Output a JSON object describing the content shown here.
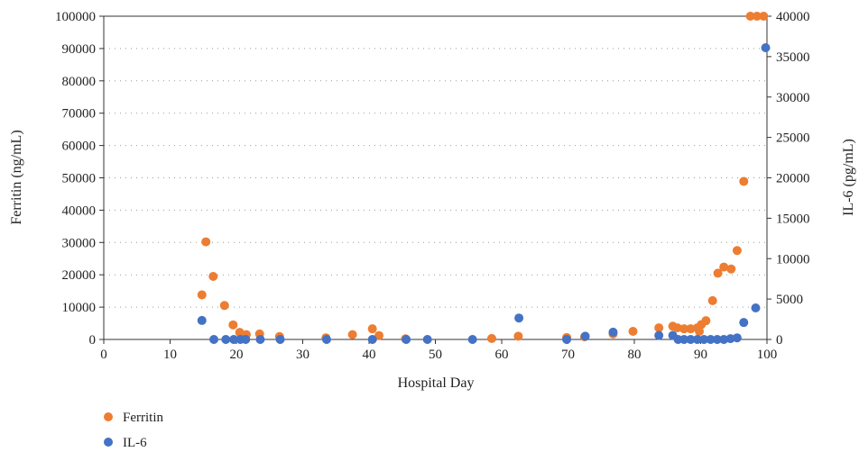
{
  "chart_data": {
    "type": "scatter",
    "xlabel": "Hospital Day",
    "ylabel": "Ferritin (ng/mL)",
    "y2label": "IL-6 (pg/mL)",
    "xlim": [
      0,
      100
    ],
    "ylim": [
      0,
      100000
    ],
    "y2lim": [
      0,
      40000
    ],
    "x_ticks": [
      0,
      10,
      20,
      30,
      40,
      50,
      60,
      70,
      80,
      90,
      100
    ],
    "y_ticks": [
      0,
      10000,
      20000,
      30000,
      40000,
      50000,
      60000,
      70000,
      80000,
      90000,
      100000
    ],
    "y2_ticks": [
      0,
      5000,
      10000,
      15000,
      20000,
      25000,
      30000,
      35000,
      40000
    ],
    "grid": "horizontal dotted",
    "legend_position": "bottom-left",
    "series": [
      {
        "name": "Ferritin",
        "axis": "left",
        "color": "#ED7D31",
        "points": [
          [
            14.8,
            13800
          ],
          [
            15.4,
            30200
          ],
          [
            16.5,
            19500
          ],
          [
            18.2,
            10500
          ],
          [
            19.5,
            4500
          ],
          [
            20.5,
            2200
          ],
          [
            21.5,
            1500
          ],
          [
            23.5,
            1700
          ],
          [
            26.5,
            900
          ],
          [
            33.5,
            500
          ],
          [
            37.5,
            1500
          ],
          [
            40.5,
            3300
          ],
          [
            41.5,
            1200
          ],
          [
            45.5,
            200
          ],
          [
            58.5,
            300
          ],
          [
            62.5,
            1000
          ],
          [
            69.8,
            600
          ],
          [
            72.5,
            800
          ],
          [
            76.8,
            1700
          ],
          [
            79.8,
            2500
          ],
          [
            83.7,
            3600
          ],
          [
            85.8,
            4100
          ],
          [
            86.5,
            3600
          ],
          [
            87.5,
            3300
          ],
          [
            88.5,
            3300
          ],
          [
            89.5,
            3600
          ],
          [
            89.8,
            2500
          ],
          [
            90.1,
            4600
          ],
          [
            90.8,
            5800
          ],
          [
            91.8,
            12000
          ],
          [
            92.6,
            20500
          ],
          [
            93.5,
            22400
          ],
          [
            94.6,
            21800
          ],
          [
            95.5,
            27500
          ],
          [
            96.5,
            48900
          ],
          [
            97.5,
            100000
          ],
          [
            98.5,
            100000
          ],
          [
            99.5,
            100000
          ]
        ]
      },
      {
        "name": "IL-6",
        "axis": "right",
        "color": "#4472C4",
        "points": [
          [
            14.8,
            2350
          ],
          [
            16.6,
            0
          ],
          [
            18.4,
            0
          ],
          [
            19.6,
            0
          ],
          [
            20.6,
            0
          ],
          [
            21.4,
            0
          ],
          [
            23.6,
            0
          ],
          [
            26.6,
            0
          ],
          [
            33.6,
            0
          ],
          [
            40.5,
            0
          ],
          [
            45.6,
            0
          ],
          [
            48.8,
            0
          ],
          [
            55.6,
            0
          ],
          [
            62.6,
            2650
          ],
          [
            69.8,
            0
          ],
          [
            72.6,
            400
          ],
          [
            76.8,
            900
          ],
          [
            83.7,
            500
          ],
          [
            85.8,
            500
          ],
          [
            86.6,
            0
          ],
          [
            87.5,
            0
          ],
          [
            88.5,
            0
          ],
          [
            89.5,
            0
          ],
          [
            90.5,
            0
          ],
          [
            91.5,
            0
          ],
          [
            92.5,
            0
          ],
          [
            93.5,
            0
          ],
          [
            94.5,
            100
          ],
          [
            95.5,
            200
          ],
          [
            96.5,
            2100
          ],
          [
            98.3,
            3900
          ],
          [
            99.8,
            36100
          ]
        ]
      }
    ]
  }
}
